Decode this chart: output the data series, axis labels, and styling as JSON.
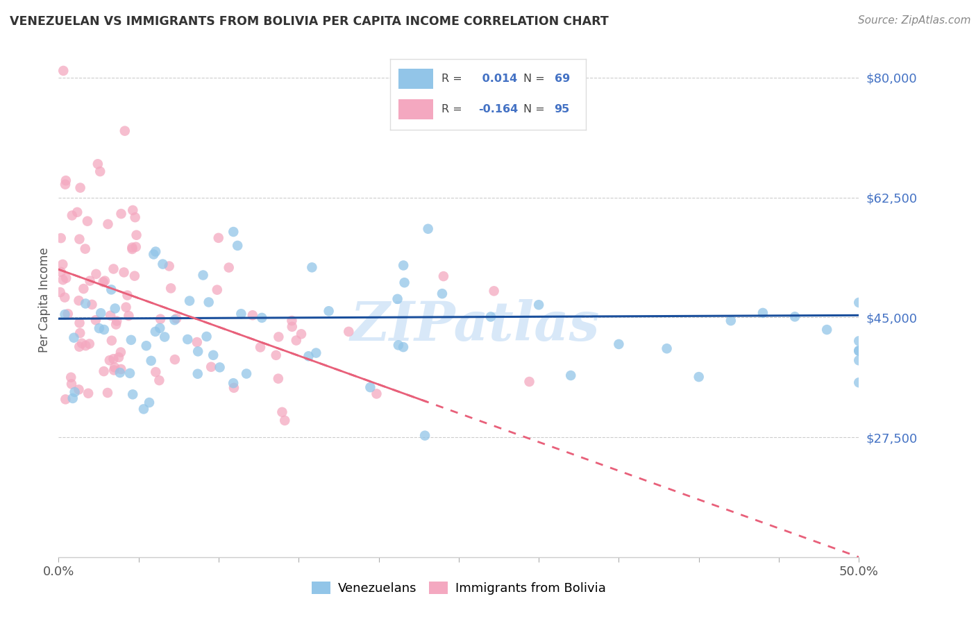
{
  "title": "VENEZUELAN VS IMMIGRANTS FROM BOLIVIA PER CAPITA INCOME CORRELATION CHART",
  "source": "Source: ZipAtlas.com",
  "ylabel": "Per Capita Income",
  "ytick_vals": [
    27500,
    45000,
    62500,
    80000
  ],
  "ytick_labels": [
    "$27,500",
    "$45,000",
    "$62,500",
    "$80,000"
  ],
  "xlim": [
    0.0,
    0.5
  ],
  "ylim": [
    10000,
    85000
  ],
  "watermark": "ZIPatlas",
  "legend_r_blue": " 0.014",
  "legend_n_blue": "69",
  "legend_r_pink": "-0.164",
  "legend_n_pink": "95",
  "blue_color": "#92C5E8",
  "pink_color": "#F4A8C0",
  "blue_line_color": "#1A4F9C",
  "pink_line_color": "#E8607A",
  "bg_color": "#FFFFFF",
  "grid_color": "#CCCCCC",
  "title_color": "#333333",
  "source_color": "#888888",
  "ytick_color": "#4472C4",
  "xtick_label_color": "#555555",
  "ylabel_color": "#555555",
  "watermark_color": "#D8E8F8"
}
